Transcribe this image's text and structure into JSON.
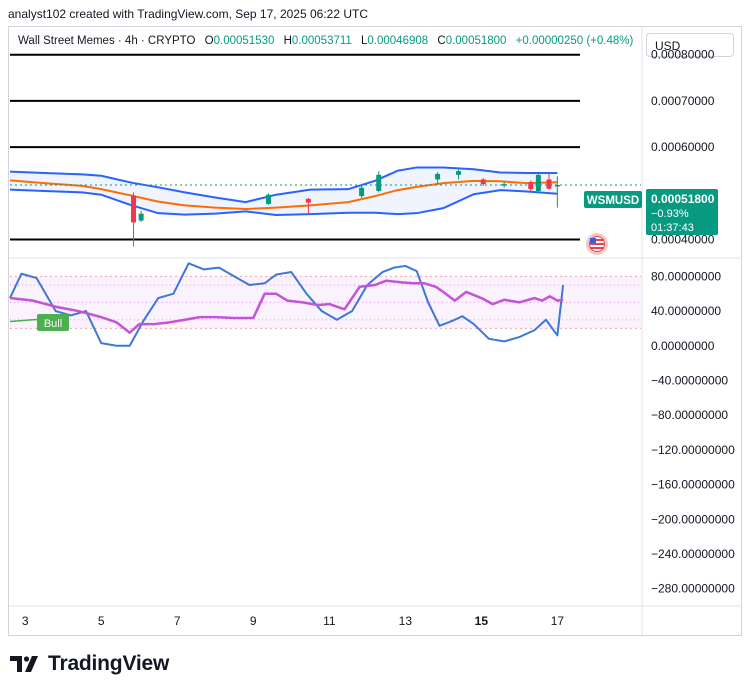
{
  "header": {
    "attribution": "analyst102 created with TradingView.com, Sep 17, 2025 06:22 UTC"
  },
  "legend": {
    "symbol": "Wall Street Memes · 4h · CRYPTO",
    "open_label": "O",
    "open": "0.00051530",
    "high_label": "H",
    "high": "0.00053711",
    "low_label": "L",
    "low": "0.00046908",
    "close_label": "C",
    "close": "0.00051800",
    "change": "+0.00000250 (+0.48%)"
  },
  "currency_button": "USD",
  "price_tag": {
    "ticker": "WSMUSD",
    "price": "0.00051800",
    "change_pct": "−0.93%",
    "countdown": "01:37:43"
  },
  "bull_label": "Bull",
  "brand": "TradingView",
  "colors": {
    "up": "#089981",
    "down": "#f23645",
    "bb_band": "#2962ff",
    "bb_basis": "#ff6d00",
    "stoch_k": "#3c78d8",
    "rsi": "#c254d8",
    "bull": "#4caf50",
    "flag": "#e0484f"
  },
  "chart_data": [
    {
      "type": "candlestick",
      "title": "Wall Street Memes · 4h · CRYPTO",
      "ylim": [
        0.00036,
        0.00086
      ],
      "y_ticks": [
        "0.00080000",
        "0.00070000",
        "0.00060000",
        "0.00040000"
      ],
      "y_tick_values": [
        0.0008,
        0.0007,
        0.0006,
        0.0004
      ],
      "x_ticks": [
        "3",
        "5",
        "7",
        "9",
        "11",
        "13",
        "15",
        "17"
      ],
      "x_tick_days": [
        3,
        5,
        7,
        9,
        11,
        13,
        15,
        17
      ],
      "x_range_days": [
        2.6,
        19.2
      ],
      "horizontal_levels": [
        0.0008,
        0.0007,
        0.0006,
        0.0004
      ],
      "bollinger": {
        "days": [
          2.6,
          3.5,
          4.5,
          5.0,
          5.8,
          6.5,
          7.2,
          8.0,
          8.8,
          9.6,
          10.5,
          11.5,
          12.2,
          12.8,
          13.3,
          14.0,
          14.8,
          15.5,
          16.2,
          17.0
        ],
        "upper": [
          0.000547,
          0.000544,
          0.000541,
          0.000538,
          0.000523,
          0.000513,
          0.000502,
          0.000491,
          0.000481,
          0.000497,
          0.000508,
          0.000509,
          0.000527,
          0.000549,
          0.000556,
          0.000556,
          0.000552,
          0.000545,
          0.000544,
          0.000544
        ],
        "basis": [
          0.000528,
          0.000522,
          0.000516,
          0.000509,
          0.000495,
          0.000482,
          0.000474,
          0.000469,
          0.000466,
          0.000469,
          0.000474,
          0.000481,
          0.000494,
          0.000507,
          0.000514,
          0.000522,
          0.000527,
          0.000526,
          0.000522,
          0.000524
        ],
        "lower": [
          0.000508,
          0.000505,
          0.000502,
          0.000497,
          0.000474,
          0.000457,
          0.000454,
          0.000456,
          0.000461,
          0.000453,
          0.000455,
          0.000458,
          0.000458,
          0.000455,
          0.000457,
          0.000468,
          0.000498,
          0.000507,
          0.000504,
          0.000499
        ]
      },
      "candles": [
        {
          "day": 5.85,
          "open": 0.000495,
          "high": 0.000502,
          "low": 0.000385,
          "close": 0.000437
        },
        {
          "day": 6.05,
          "open": 0.000441,
          "high": 0.000462,
          "low": 0.000438,
          "close": 0.000456
        },
        {
          "day": 9.4,
          "open": 0.000477,
          "high": 0.0005,
          "low": 0.000475,
          "close": 0.000497
        },
        {
          "day": 10.45,
          "open": 0.000488,
          "high": 0.00049,
          "low": 0.000455,
          "close": 0.00048
        },
        {
          "day": 11.85,
          "open": 0.000494,
          "high": 0.000516,
          "low": 0.00049,
          "close": 0.000512
        },
        {
          "day": 12.3,
          "open": 0.000505,
          "high": 0.000548,
          "low": 0.000502,
          "close": 0.00054
        },
        {
          "day": 13.85,
          "open": 0.00053,
          "high": 0.000546,
          "low": 0.00052,
          "close": 0.000542
        },
        {
          "day": 14.4,
          "open": 0.00054,
          "high": 0.000552,
          "low": 0.00053,
          "close": 0.000548
        },
        {
          "day": 15.05,
          "open": 0.00053,
          "high": 0.000533,
          "low": 0.000516,
          "close": 0.00052
        },
        {
          "day": 15.6,
          "open": 0.000518,
          "high": 0.000524,
          "low": 0.000512,
          "close": 0.00052
        },
        {
          "day": 16.3,
          "open": 0.000524,
          "high": 0.000528,
          "low": 0.000505,
          "close": 0.000509
        },
        {
          "day": 16.5,
          "open": 0.000505,
          "high": 0.000542,
          "low": 0.0005,
          "close": 0.00054
        },
        {
          "day": 16.78,
          "open": 0.00053,
          "high": 0.000544,
          "low": 0.000508,
          "close": 0.00051
        },
        {
          "day": 17.0,
          "open": 0.000515,
          "high": 0.000537,
          "low": 0.000469,
          "close": 0.000518
        }
      ]
    },
    {
      "type": "line",
      "ylim": [
        -300,
        100
      ],
      "y_ticks": [
        "80.00000000",
        "40.00000000",
        "0.00000000",
        "−40.00000000",
        "−80.00000000",
        "−120.00000000",
        "−160.00000000",
        "−200.00000000",
        "−240.00000000",
        "−280.00000000"
      ],
      "y_tick_values": [
        80,
        40,
        0,
        -40,
        -80,
        -120,
        -160,
        -200,
        -240,
        -280
      ],
      "bands": [
        {
          "from": 20,
          "to": 80
        }
      ],
      "levels": [
        70,
        50,
        30
      ],
      "series": [
        {
          "key": "stoch",
          "days": [
            2.6,
            2.9,
            3.3,
            3.8,
            4.2,
            4.6,
            5.0,
            5.4,
            5.75,
            6.1,
            6.5,
            6.9,
            7.3,
            7.7,
            8.1,
            8.5,
            8.9,
            9.3,
            9.6,
            10.0,
            10.4,
            10.8,
            11.2,
            11.6,
            12.0,
            12.4,
            12.7,
            13.0,
            13.3,
            13.6,
            13.9,
            14.2,
            14.5,
            14.8,
            15.2,
            15.6,
            16.0,
            16.4,
            16.7,
            17.0,
            17.15
          ],
          "values": [
            55,
            83,
            78,
            40,
            35,
            40,
            3,
            0,
            0,
            28,
            55,
            60,
            95,
            88,
            90,
            80,
            70,
            72,
            82,
            85,
            60,
            40,
            30,
            40,
            70,
            85,
            90,
            92,
            86,
            50,
            23,
            28,
            34,
            25,
            8,
            5,
            10,
            18,
            30,
            12,
            70
          ]
        },
        {
          "key": "rsi",
          "days": [
            2.6,
            3.2,
            3.8,
            4.4,
            5.0,
            5.4,
            5.75,
            6.0,
            6.4,
            6.8,
            7.2,
            7.6,
            8.0,
            8.5,
            9.0,
            9.3,
            9.6,
            9.9,
            10.3,
            10.7,
            11.0,
            11.4,
            11.8,
            12.2,
            12.5,
            12.9,
            13.2,
            13.5,
            13.8,
            14.0,
            14.3,
            14.6,
            15.0,
            15.3,
            15.6,
            16.0,
            16.4,
            16.6,
            16.8,
            17.0,
            17.15
          ],
          "values": [
            55,
            52,
            45,
            40,
            33,
            27,
            15,
            25,
            25,
            27,
            30,
            33,
            33,
            32,
            32,
            60,
            60,
            52,
            50,
            47,
            48,
            42,
            68,
            70,
            75,
            73,
            72,
            72,
            68,
            62,
            52,
            62,
            55,
            48,
            53,
            50,
            55,
            52,
            57,
            52,
            53
          ]
        },
        {
          "key": "bull_trend",
          "days": [
            2.6,
            3.2,
            3.7
          ],
          "values": [
            28,
            30,
            31
          ]
        }
      ]
    }
  ]
}
